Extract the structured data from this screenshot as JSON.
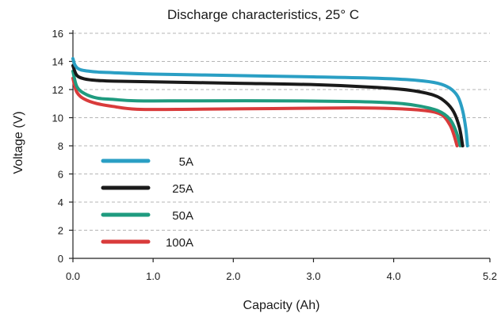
{
  "chart_data": {
    "type": "line",
    "title": "Discharge characteristics, 25° C",
    "xlabel": "Capacity (Ah)",
    "ylabel": "Voltage (V)",
    "xlim": [
      0,
      5.2
    ],
    "ylim": [
      0,
      16
    ],
    "x_ticks": [
      0.0,
      1.0,
      2.0,
      3.0,
      4.0,
      5.2
    ],
    "x_tick_labels": [
      "0.0",
      "1.0",
      "2.0",
      "3.0",
      "4.0",
      "5.2"
    ],
    "y_ticks": [
      0,
      2,
      4,
      6,
      8,
      10,
      12,
      14,
      16
    ],
    "y_tick_labels": [
      "0",
      "2",
      "4",
      "6",
      "8",
      "10",
      "12",
      "14",
      "16"
    ],
    "grid": "horizontal-dashed",
    "legend_position": "center-left",
    "series": [
      {
        "name": "5A",
        "color": "#2a9fc4",
        "points": [
          [
            0.0,
            14.2
          ],
          [
            0.03,
            13.7
          ],
          [
            0.1,
            13.4
          ],
          [
            0.3,
            13.25
          ],
          [
            0.5,
            13.2
          ],
          [
            1.0,
            13.1
          ],
          [
            2.0,
            13.0
          ],
          [
            3.0,
            12.9
          ],
          [
            3.8,
            12.8
          ],
          [
            4.3,
            12.65
          ],
          [
            4.55,
            12.45
          ],
          [
            4.7,
            12.1
          ],
          [
            4.8,
            11.5
          ],
          [
            4.86,
            10.5
          ],
          [
            4.9,
            9.2
          ],
          [
            4.92,
            8.0
          ]
        ]
      },
      {
        "name": "25A",
        "color": "#1a1a1a",
        "points": [
          [
            0.0,
            13.7
          ],
          [
            0.05,
            13.0
          ],
          [
            0.15,
            12.75
          ],
          [
            0.3,
            12.65
          ],
          [
            0.5,
            12.6
          ],
          [
            1.0,
            12.55
          ],
          [
            2.0,
            12.45
          ],
          [
            3.0,
            12.35
          ],
          [
            3.8,
            12.15
          ],
          [
            4.2,
            11.95
          ],
          [
            4.5,
            11.6
          ],
          [
            4.65,
            11.1
          ],
          [
            4.75,
            10.4
          ],
          [
            4.82,
            9.3
          ],
          [
            4.86,
            8.0
          ]
        ]
      },
      {
        "name": "50A",
        "color": "#1f9b7f",
        "points": [
          [
            0.0,
            13.3
          ],
          [
            0.05,
            12.2
          ],
          [
            0.15,
            11.7
          ],
          [
            0.3,
            11.4
          ],
          [
            0.5,
            11.3
          ],
          [
            0.8,
            11.2
          ],
          [
            1.5,
            11.2
          ],
          [
            2.5,
            11.2
          ],
          [
            3.5,
            11.15
          ],
          [
            4.0,
            11.05
          ],
          [
            4.3,
            10.85
          ],
          [
            4.55,
            10.5
          ],
          [
            4.7,
            9.9
          ],
          [
            4.78,
            9.0
          ],
          [
            4.83,
            8.0
          ]
        ]
      },
      {
        "name": "100A",
        "color": "#d93b3b",
        "points": [
          [
            0.0,
            12.8
          ],
          [
            0.05,
            11.8
          ],
          [
            0.15,
            11.3
          ],
          [
            0.3,
            11.0
          ],
          [
            0.5,
            10.8
          ],
          [
            0.8,
            10.6
          ],
          [
            1.5,
            10.6
          ],
          [
            2.5,
            10.65
          ],
          [
            3.5,
            10.7
          ],
          [
            4.0,
            10.65
          ],
          [
            4.4,
            10.5
          ],
          [
            4.6,
            10.2
          ],
          [
            4.7,
            9.5
          ],
          [
            4.75,
            8.8
          ],
          [
            4.79,
            8.0
          ]
        ]
      }
    ]
  }
}
